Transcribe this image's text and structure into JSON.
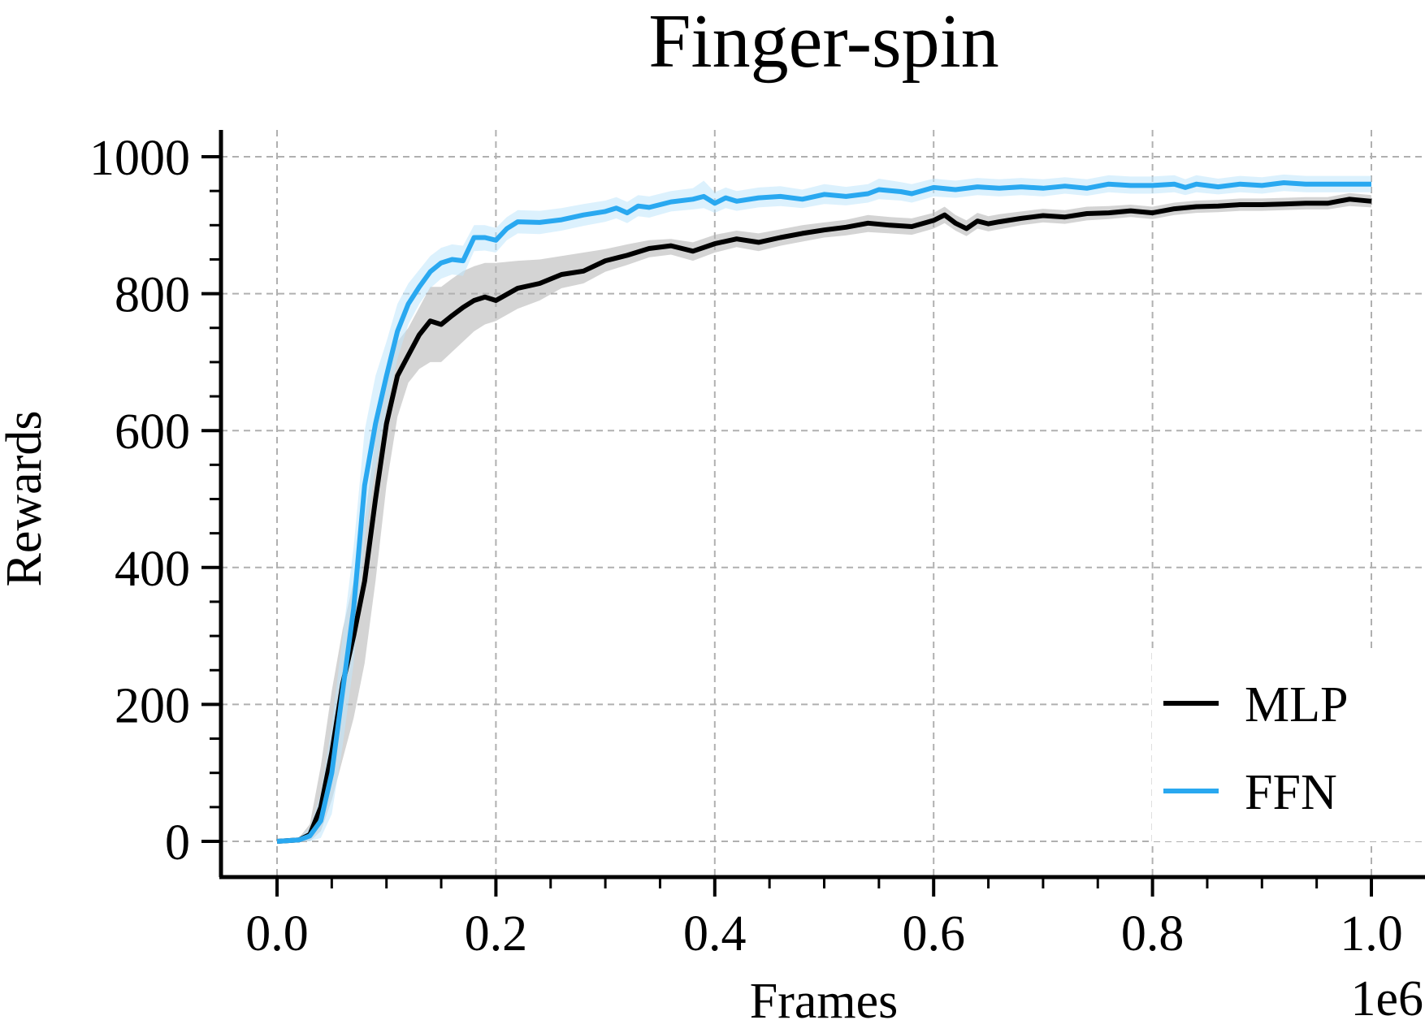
{
  "chart_data": {
    "type": "line",
    "title": "Finger-spin",
    "xlabel": "Frames",
    "ylabel": "Rewards",
    "x_offset_label": "1e6",
    "xlim": [
      0.0,
      1.0
    ],
    "ylim": [
      0,
      1000
    ],
    "xticks": [
      "0.0",
      "0.2",
      "0.4",
      "0.6",
      "0.8",
      "1.0"
    ],
    "yticks": [
      "0",
      "200",
      "400",
      "600",
      "800",
      "1000"
    ],
    "grid": true,
    "legend_position": "bottom-right",
    "series": [
      {
        "name": "MLP",
        "color": "#000000",
        "band_color": "#b0b0b0",
        "x": [
          0.0,
          0.02,
          0.03,
          0.04,
          0.05,
          0.06,
          0.07,
          0.08,
          0.09,
          0.1,
          0.11,
          0.12,
          0.13,
          0.14,
          0.15,
          0.16,
          0.17,
          0.18,
          0.19,
          0.2,
          0.22,
          0.24,
          0.26,
          0.28,
          0.3,
          0.32,
          0.34,
          0.36,
          0.38,
          0.4,
          0.42,
          0.44,
          0.46,
          0.48,
          0.5,
          0.52,
          0.54,
          0.56,
          0.58,
          0.6,
          0.61,
          0.62,
          0.63,
          0.64,
          0.65,
          0.66,
          0.68,
          0.7,
          0.72,
          0.74,
          0.76,
          0.78,
          0.8,
          0.82,
          0.84,
          0.86,
          0.88,
          0.9,
          0.92,
          0.94,
          0.96,
          0.98,
          1.0
        ],
        "y": [
          0,
          2,
          10,
          50,
          130,
          230,
          300,
          380,
          500,
          610,
          680,
          710,
          740,
          760,
          755,
          768,
          780,
          790,
          795,
          790,
          808,
          815,
          828,
          833,
          848,
          856,
          866,
          870,
          862,
          873,
          880,
          875,
          882,
          888,
          893,
          897,
          903,
          900,
          898,
          907,
          915,
          903,
          895,
          906,
          902,
          905,
          910,
          914,
          912,
          917,
          918,
          921,
          918,
          924,
          927,
          928,
          930,
          930,
          931,
          932,
          932,
          938,
          935
        ],
        "lower": [
          0,
          0,
          0,
          15,
          60,
          120,
          180,
          260,
          380,
          520,
          620,
          670,
          690,
          700,
          700,
          715,
          730,
          745,
          755,
          760,
          778,
          790,
          808,
          815,
          832,
          842,
          853,
          857,
          848,
          860,
          868,
          862,
          870,
          876,
          882,
          885,
          890,
          888,
          886,
          895,
          903,
          892,
          884,
          895,
          891,
          894,
          900,
          904,
          902,
          907,
          909,
          912,
          909,
          915,
          918,
          919,
          921,
          921,
          922,
          923,
          923,
          928,
          926
        ],
        "upper": [
          0,
          5,
          25,
          110,
          220,
          310,
          380,
          470,
          590,
          680,
          730,
          750,
          780,
          810,
          810,
          822,
          833,
          840,
          845,
          845,
          848,
          850,
          855,
          860,
          865,
          872,
          878,
          880,
          875,
          886,
          892,
          888,
          894,
          900,
          904,
          908,
          915,
          912,
          910,
          918,
          927,
          915,
          907,
          918,
          913,
          916,
          920,
          924,
          922,
          927,
          928,
          930,
          927,
          933,
          936,
          937,
          939,
          939,
          940,
          941,
          941,
          947,
          944
        ]
      },
      {
        "name": "FFN",
        "color": "#29a8f0",
        "band_color": "#bfe6fb",
        "x": [
          0.0,
          0.02,
          0.03,
          0.04,
          0.05,
          0.06,
          0.07,
          0.08,
          0.09,
          0.1,
          0.11,
          0.12,
          0.13,
          0.14,
          0.15,
          0.16,
          0.17,
          0.18,
          0.19,
          0.2,
          0.21,
          0.22,
          0.24,
          0.26,
          0.28,
          0.3,
          0.31,
          0.32,
          0.33,
          0.34,
          0.36,
          0.38,
          0.39,
          0.4,
          0.41,
          0.42,
          0.44,
          0.46,
          0.48,
          0.5,
          0.52,
          0.54,
          0.55,
          0.57,
          0.58,
          0.6,
          0.62,
          0.64,
          0.66,
          0.68,
          0.7,
          0.72,
          0.74,
          0.76,
          0.78,
          0.8,
          0.82,
          0.83,
          0.84,
          0.86,
          0.88,
          0.9,
          0.92,
          0.94,
          0.96,
          0.98,
          1.0
        ],
        "y": [
          0,
          2,
          8,
          30,
          100,
          220,
          340,
          520,
          610,
          680,
          745,
          785,
          810,
          832,
          845,
          850,
          848,
          882,
          882,
          878,
          895,
          905,
          904,
          908,
          915,
          920,
          925,
          918,
          928,
          926,
          934,
          938,
          942,
          932,
          940,
          935,
          940,
          942,
          938,
          945,
          942,
          946,
          952,
          949,
          946,
          955,
          952,
          956,
          954,
          956,
          954,
          957,
          954,
          960,
          958,
          958,
          960,
          955,
          960,
          956,
          960,
          958,
          962,
          960,
          960,
          960,
          960
        ],
        "lower": [
          0,
          0,
          0,
          5,
          40,
          140,
          260,
          440,
          545,
          630,
          705,
          755,
          785,
          808,
          822,
          828,
          826,
          862,
          863,
          860,
          878,
          888,
          887,
          892,
          899,
          905,
          910,
          903,
          913,
          911,
          920,
          923,
          925,
          918,
          925,
          921,
          926,
          928,
          925,
          931,
          929,
          933,
          938,
          936,
          933,
          942,
          940,
          944,
          942,
          944,
          942,
          946,
          943,
          948,
          946,
          946,
          948,
          944,
          948,
          945,
          948,
          946,
          950,
          948,
          948,
          948,
          948
        ],
        "upper": [
          0,
          5,
          20,
          70,
          170,
          300,
          430,
          600,
          680,
          730,
          785,
          815,
          835,
          855,
          867,
          872,
          870,
          900,
          900,
          896,
          912,
          922,
          921,
          925,
          931,
          936,
          941,
          934,
          944,
          942,
          950,
          954,
          965,
          948,
          955,
          950,
          955,
          957,
          952,
          960,
          956,
          960,
          968,
          963,
          960,
          968,
          965,
          969,
          967,
          969,
          967,
          970,
          967,
          973,
          971,
          971,
          973,
          967,
          973,
          968,
          972,
          970,
          974,
          972,
          972,
          972,
          972
        ]
      }
    ]
  }
}
